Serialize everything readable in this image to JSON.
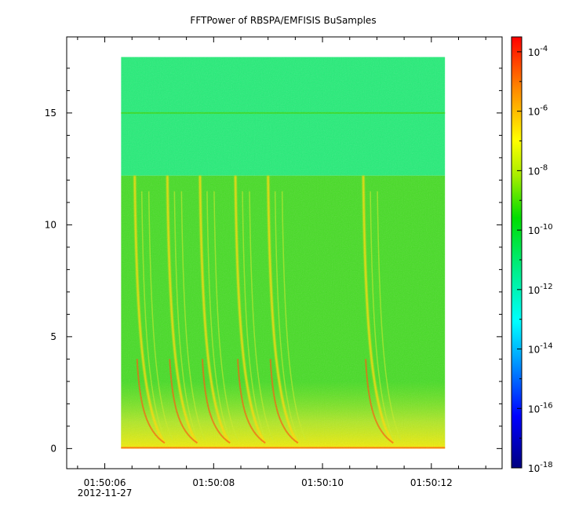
{
  "chart_data": {
    "type": "heatmap",
    "title": "FFTPower of RBSPA/EMFISIS  BuSamples",
    "xlabel": "",
    "ylabel": "",
    "x_ticks": [
      {
        "value": "01:50:06",
        "sub": "2012-11-27"
      },
      {
        "value": "01:50:08",
        "sub": ""
      },
      {
        "value": "01:50:10",
        "sub": ""
      },
      {
        "value": "01:50:12",
        "sub": ""
      }
    ],
    "x_range_seconds": [
      5.3,
      13.3
    ],
    "data_x_extent_seconds": [
      6.3,
      12.25
    ],
    "y_ticks": [
      "0",
      "5",
      "10",
      "15"
    ],
    "ylim": [
      -0.9,
      18.4
    ],
    "data_y_extent": [
      0,
      17.5
    ],
    "noise_boundary_y": 12.2,
    "narrow_line_y": 15.0,
    "chorus_times_seconds": [
      6.55,
      7.15,
      7.75,
      8.4,
      9.0,
      10.75
    ],
    "colorbar": {
      "scale": "log",
      "range_exp": [
        -18,
        -3.5
      ],
      "tick_exps": [
        -18,
        -16,
        -14,
        -12,
        -10,
        -8,
        -6,
        -4
      ],
      "tick_labels": [
        "10",
        "10",
        "10",
        "10",
        "10",
        "10",
        "10",
        "10"
      ],
      "tick_sups": [
        "-18",
        "-16",
        "-14",
        "-12",
        "-10",
        "-8",
        "-6",
        "-4"
      ]
    }
  }
}
